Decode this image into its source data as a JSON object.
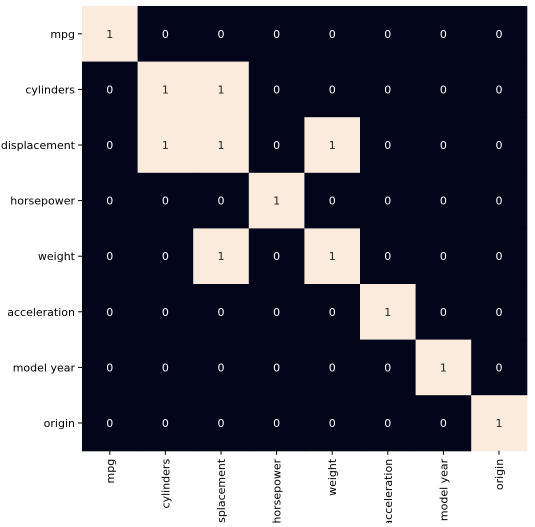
{
  "chart_data": {
    "type": "heatmap",
    "title": "",
    "xlabel": "",
    "ylabel": "",
    "rows": [
      "mpg",
      "cylinders",
      "displacement",
      "horsepower",
      "weight",
      "acceleration",
      "model year",
      "origin"
    ],
    "columns": [
      "mpg",
      "cylinders",
      "displacement",
      "horsepower",
      "weight",
      "acceleration",
      "model year",
      "origin"
    ],
    "values": [
      [
        1,
        0,
        0,
        0,
        0,
        0,
        0,
        0
      ],
      [
        0,
        1,
        1,
        0,
        0,
        0,
        0,
        0
      ],
      [
        0,
        1,
        1,
        0,
        1,
        0,
        0,
        0
      ],
      [
        0,
        0,
        0,
        1,
        0,
        0,
        0,
        0
      ],
      [
        0,
        0,
        1,
        0,
        1,
        0,
        0,
        0
      ],
      [
        0,
        0,
        0,
        0,
        0,
        1,
        0,
        0
      ],
      [
        0,
        0,
        0,
        0,
        0,
        0,
        1,
        0
      ],
      [
        0,
        0,
        0,
        0,
        0,
        0,
        0,
        1
      ]
    ],
    "value_range": [
      0,
      1
    ],
    "colorbar": false,
    "annotate": true,
    "colors": {
      "low": "#03051a",
      "high": "#faebdd",
      "text_on_low": "#ffffff",
      "text_on_high": "#262626",
      "axis_text": "#000000"
    }
  }
}
